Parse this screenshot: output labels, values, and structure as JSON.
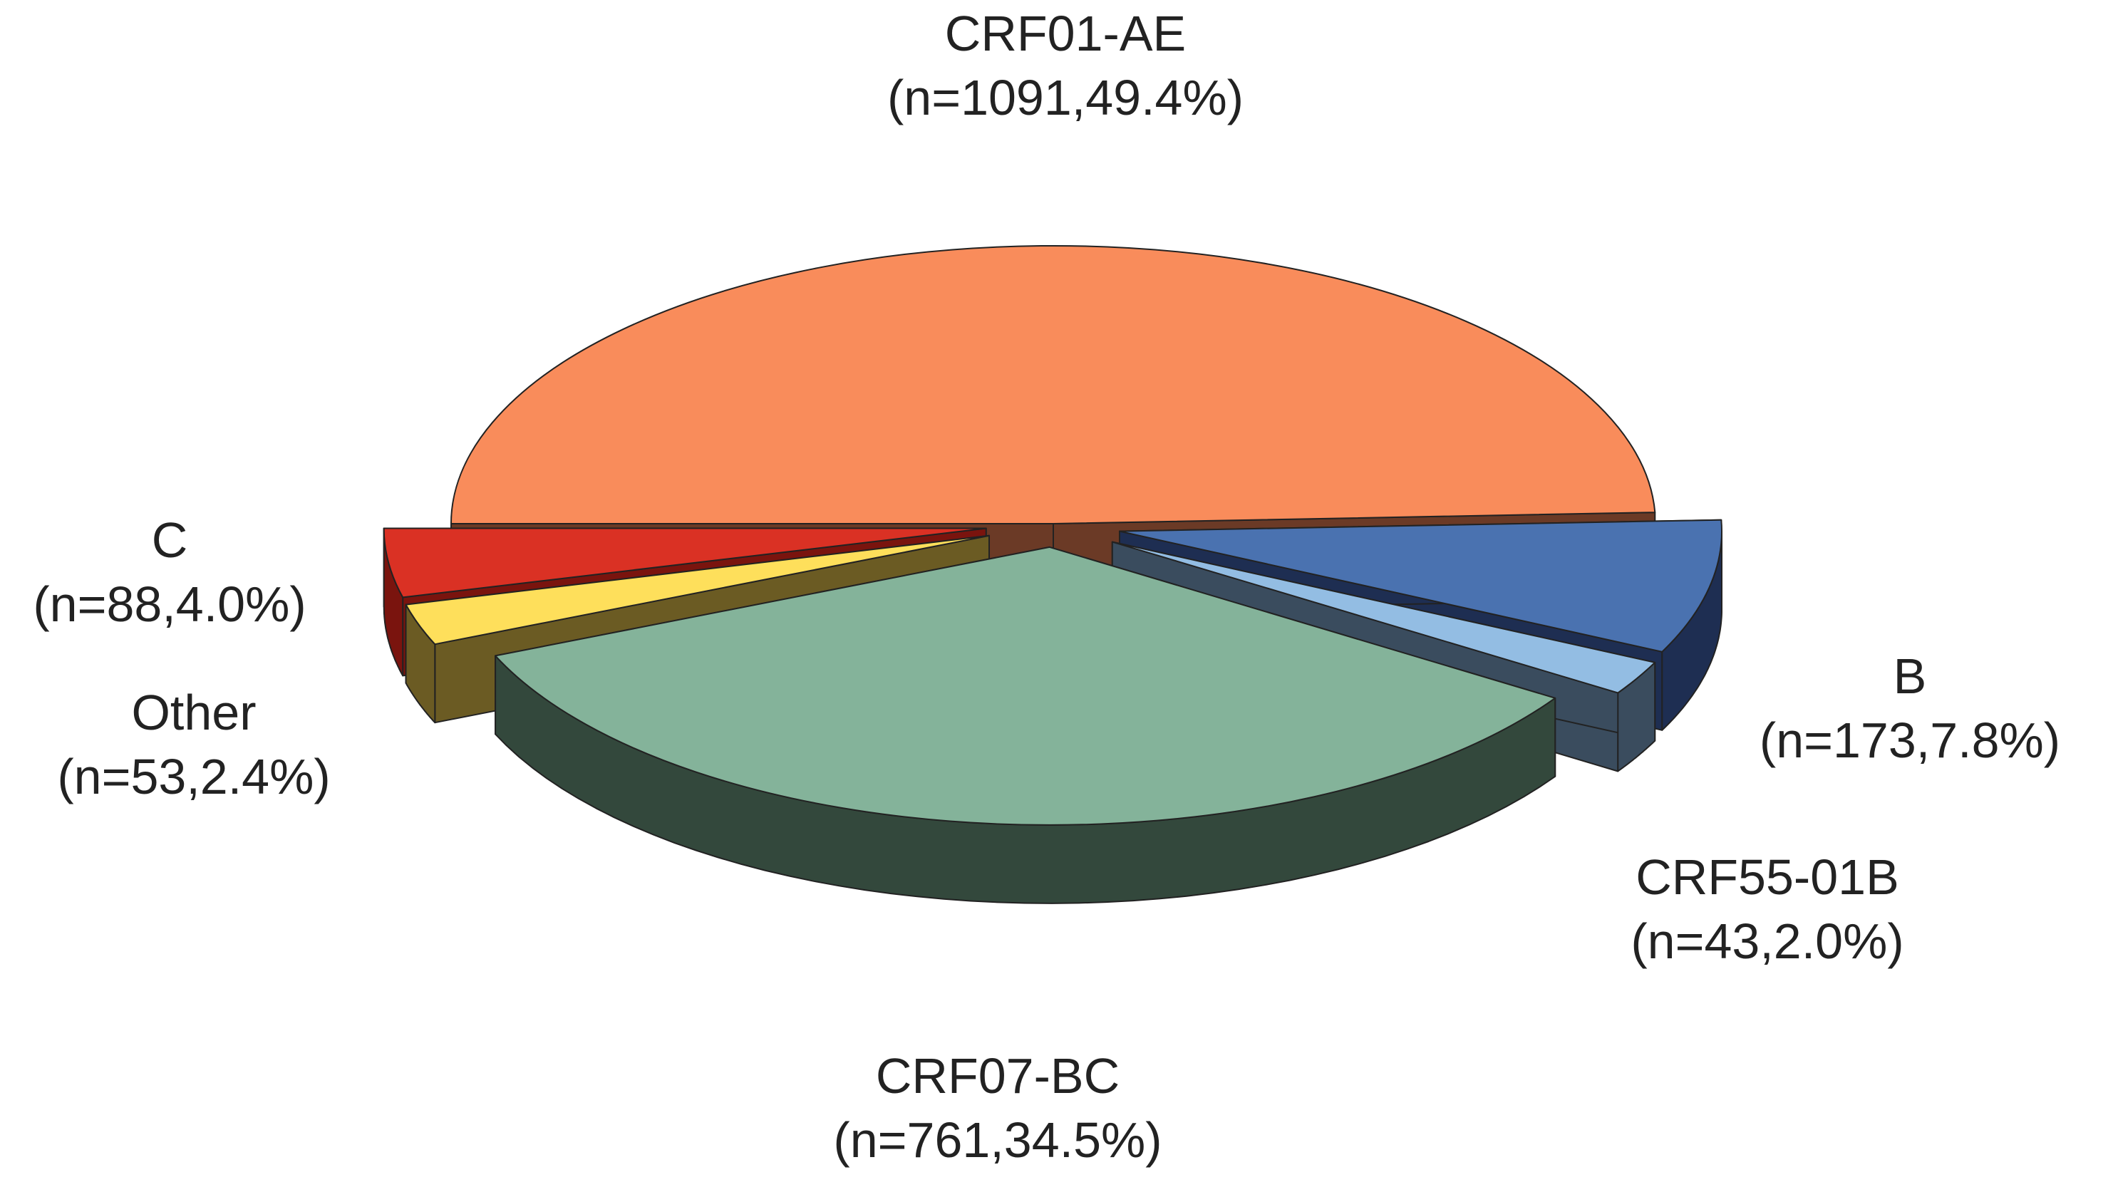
{
  "chart_data": {
    "type": "pie",
    "style": "3d-exploded",
    "slices": [
      {
        "name": "CRF01-AE",
        "n": 1091,
        "percent": 49.4,
        "n_label": "(n=1091,49.4%)",
        "color": "#F98C5B",
        "side_color": "#6B3A26"
      },
      {
        "name": "B",
        "n": 173,
        "percent": 7.8,
        "n_label": "(n=173,7.8%)",
        "color": "#4A72B0",
        "side_color": "#1E2E52"
      },
      {
        "name": "CRF55-01B",
        "n": 43,
        "percent": 2.0,
        "n_label": "(n=43,2.0%)",
        "color": "#93BDE3",
        "side_color": "#3A4C5E"
      },
      {
        "name": "CRF07-BC",
        "n": 761,
        "percent": 34.5,
        "n_label": "(n=761,34.5%)",
        "color": "#84B39A",
        "side_color": "#33483C"
      },
      {
        "name": "Other",
        "n": 53,
        "percent": 2.4,
        "n_label": "(n=53,2.4%)",
        "color": "#FEDF5B",
        "side_color": "#6B5B23"
      },
      {
        "name": "C",
        "n": 88,
        "percent": 4.0,
        "n_label": "(n=88,4.0%)",
        "color": "#DA3124",
        "side_color": "#7A140E"
      }
    ]
  }
}
